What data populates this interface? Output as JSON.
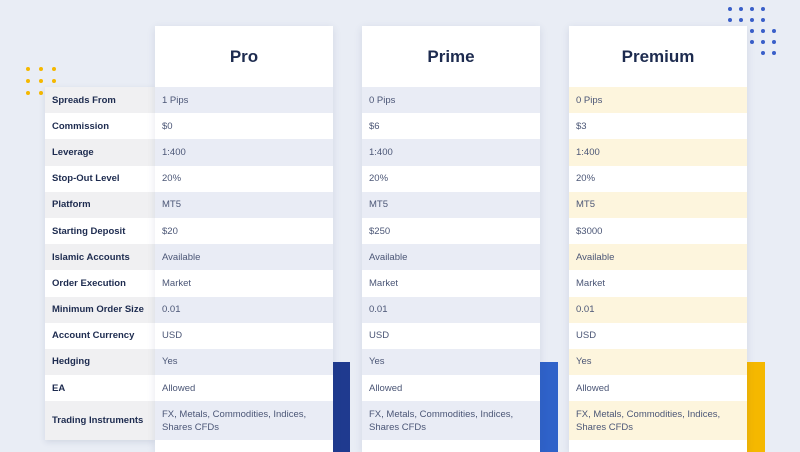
{
  "colors": {
    "background": "#e9edf5",
    "pro_accent": "#1f3a8f",
    "prime_accent": "#2f62c9",
    "premium_accent": "#f5b800",
    "blue_row_shade": "#e9ecf5",
    "gold_row_shade": "#fdf5dd",
    "label_shade": "#f0f0f2"
  },
  "labels": [
    "Spreads From",
    "Commission",
    "Leverage",
    "Stop-Out Level",
    "Platform",
    "Starting Deposit",
    "Islamic Accounts",
    "Order Execution",
    "Minimum Order Size",
    "Account Currency",
    "Hedging",
    "EA",
    "Trading Instruments"
  ],
  "plans": [
    {
      "name": "Pro",
      "values": [
        "1 Pips",
        "$0",
        "1:400",
        "20%",
        "MT5",
        "$20",
        "Available",
        "Market",
        "0.01",
        "USD",
        "Yes",
        "Allowed",
        "FX, Metals, Commodities, Indices, Shares CFDs"
      ]
    },
    {
      "name": "Prime",
      "values": [
        "0 Pips",
        "$6",
        "1:400",
        "20%",
        "MT5",
        "$250",
        "Available",
        "Market",
        "0.01",
        "USD",
        "Yes",
        "Allowed",
        "FX, Metals, Commodities, Indices, Shares CFDs"
      ]
    },
    {
      "name": "Premium",
      "values": [
        "0 Pips",
        "$3",
        "1:400",
        "20%",
        "MT5",
        "$3000",
        "Available",
        "Market",
        "0.01",
        "USD",
        "Yes",
        "Allowed",
        "FX, Metals, Commodities, Indices, Shares CFDs"
      ]
    }
  ]
}
